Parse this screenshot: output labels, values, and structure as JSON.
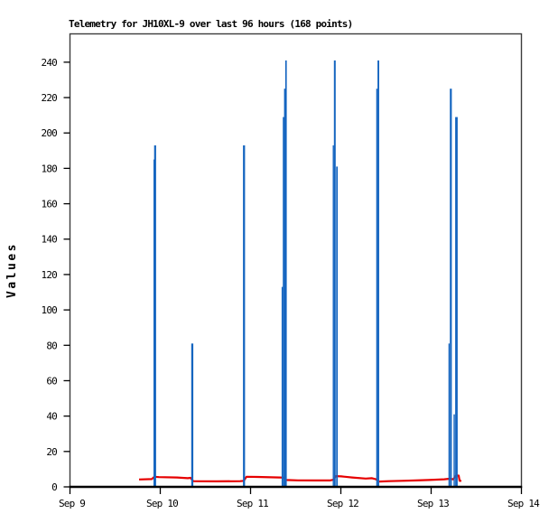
{
  "chart_data": {
    "type": "line",
    "title": "Telemetry for JH10XL-9 over last 96 hours (168 points)",
    "xlabel": "",
    "ylabel": "Values",
    "x_axis": {
      "tick_labels": [
        "Sep 9",
        "Sep 10",
        "Sep 11",
        "Sep 12",
        "Sep 13",
        "Sep 14"
      ],
      "range_days": [
        0,
        5
      ],
      "units": "days since Sep 9"
    },
    "y_axis": {
      "ticks": [
        0,
        20,
        40,
        60,
        80,
        100,
        120,
        140,
        160,
        180,
        200,
        220,
        240
      ],
      "range": [
        0,
        256
      ]
    },
    "grid": "off",
    "legend": "none",
    "colors": {
      "impulse_series": "#1565c0",
      "line_series": "#e60000",
      "frame": "#3c3c3c",
      "axis": "#000000",
      "text": "#000000",
      "background": "#ffffff"
    },
    "series": [
      {
        "name": "spikes",
        "style": "impulse",
        "color": "#1565c0",
        "points": [
          {
            "day": 0.932,
            "value": 185,
            "w": 1.3
          },
          {
            "day": 0.943,
            "value": 193,
            "w": 2.2
          },
          {
            "day": 1.355,
            "value": 81,
            "w": 2.3
          },
          {
            "day": 1.928,
            "value": 193,
            "w": 2.3
          },
          {
            "day": 2.351,
            "value": 113,
            "w": 1.4
          },
          {
            "day": 2.365,
            "value": 209,
            "w": 1.6
          },
          {
            "day": 2.379,
            "value": 225,
            "w": 1.5
          },
          {
            "day": 2.393,
            "value": 241,
            "w": 1.7
          },
          {
            "day": 2.917,
            "value": 193,
            "w": 1.4
          },
          {
            "day": 2.933,
            "value": 241,
            "w": 2.0
          },
          {
            "day": 2.957,
            "value": 181,
            "w": 1.8
          },
          {
            "day": 3.399,
            "value": 225,
            "w": 1.4
          },
          {
            "day": 3.415,
            "value": 241,
            "w": 1.9
          },
          {
            "day": 4.198,
            "value": 81,
            "w": 1.3
          },
          {
            "day": 4.218,
            "value": 225,
            "w": 2.2
          },
          {
            "day": 4.255,
            "value": 41,
            "w": 1.5
          },
          {
            "day": 4.28,
            "value": 209,
            "w": 2.8
          }
        ]
      },
      {
        "name": "average",
        "style": "line",
        "color": "#e60000",
        "points": [
          [
            0.765,
            4.2
          ],
          [
            0.905,
            4.4
          ],
          [
            0.935,
            5.7
          ],
          [
            0.985,
            5.5
          ],
          [
            1.185,
            5.3
          ],
          [
            1.305,
            4.9
          ],
          [
            1.335,
            5.1
          ],
          [
            1.365,
            3.2
          ],
          [
            1.625,
            3.1
          ],
          [
            1.885,
            3.2
          ],
          [
            1.925,
            3.4
          ],
          [
            1.955,
            5.7
          ],
          [
            2.075,
            5.6
          ],
          [
            2.225,
            5.4
          ],
          [
            2.325,
            5.3
          ],
          [
            2.375,
            5.2
          ],
          [
            2.395,
            3.9
          ],
          [
            2.525,
            3.7
          ],
          [
            2.725,
            3.6
          ],
          [
            2.875,
            3.6
          ],
          [
            2.915,
            4.0
          ],
          [
            2.945,
            6.1
          ],
          [
            3.005,
            5.9
          ],
          [
            3.125,
            5.3
          ],
          [
            3.275,
            4.7
          ],
          [
            3.345,
            4.9
          ],
          [
            3.385,
            4.4
          ],
          [
            3.425,
            3.0
          ],
          [
            3.525,
            3.2
          ],
          [
            3.675,
            3.4
          ],
          [
            3.825,
            3.6
          ],
          [
            3.975,
            3.9
          ],
          [
            4.145,
            4.3
          ],
          [
            4.205,
            4.6
          ],
          [
            4.245,
            4.3
          ],
          [
            4.275,
            6.4
          ],
          [
            4.305,
            6.4
          ],
          [
            4.315,
            3.4
          ],
          [
            4.335,
            3.4
          ]
        ]
      }
    ]
  }
}
